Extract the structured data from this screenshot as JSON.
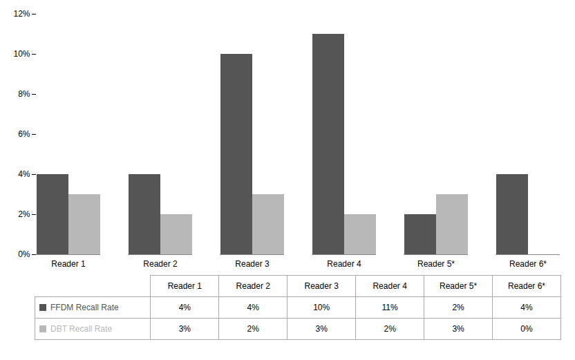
{
  "chart_data": {
    "type": "bar",
    "categories": [
      "Reader 1",
      "Reader 2",
      "Reader 3",
      "Reader 4",
      "Reader 5*",
      "Reader 6*"
    ],
    "series": [
      {
        "name": "FFDM Recall Rate",
        "color": "#555555",
        "values": [
          4,
          4,
          10,
          11,
          2,
          4
        ],
        "value_labels": [
          "4%",
          "4%",
          "10%",
          "11%",
          "2%",
          "4%"
        ]
      },
      {
        "name": "DBT Recall Rate",
        "color": "#b8b8b8",
        "values": [
          3,
          2,
          3,
          2,
          3,
          0
        ],
        "value_labels": [
          "3%",
          "2%",
          "3%",
          "2%",
          "3%",
          "0%"
        ]
      }
    ],
    "ylim": [
      0,
      12
    ],
    "yticks": [
      {
        "value": 0,
        "label": "0%"
      },
      {
        "value": 2,
        "label": "2%"
      },
      {
        "value": 4,
        "label": "4%"
      },
      {
        "value": 6,
        "label": "6%"
      },
      {
        "value": 8,
        "label": "8%"
      },
      {
        "value": 10,
        "label": "10%"
      },
      {
        "value": 12,
        "label": "12%"
      }
    ],
    "grid": false
  }
}
